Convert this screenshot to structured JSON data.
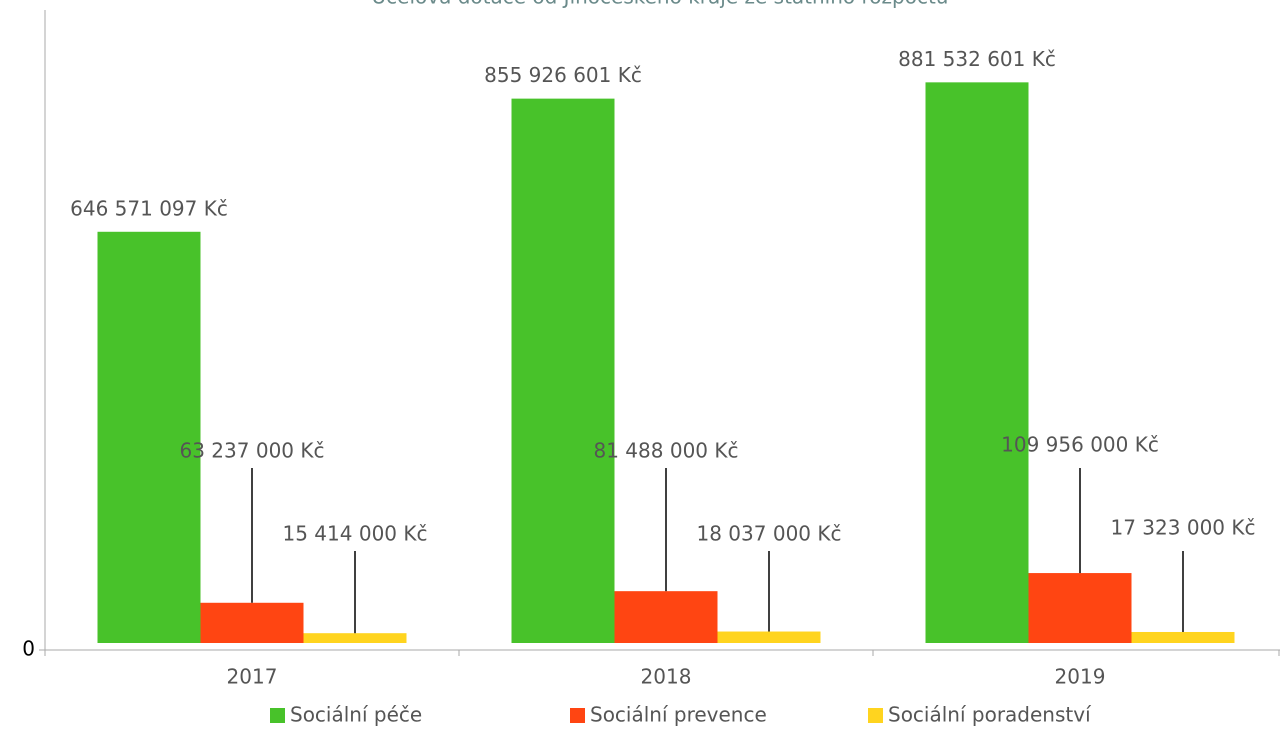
{
  "chart_data": {
    "type": "bar",
    "title": "Účelová dotace od Jihočeského kraje ze státního rozpočtu",
    "categories": [
      "2017",
      "2018",
      "2019"
    ],
    "series": [
      {
        "name": "Sociální péče",
        "color": "#48c22a",
        "values": [
          646571097,
          855926601,
          881532601
        ],
        "value_labels": [
          "646 571 097 Kč",
          "855 926 601 Kč",
          "881 532 601 Kč"
        ]
      },
      {
        "name": "Sociální prevence",
        "color": "#ff4512",
        "values": [
          63237000,
          81488000,
          109956000
        ],
        "value_labels": [
          "63 237 000 Kč",
          "81 488 000 Kč",
          "109 956 000 Kč"
        ]
      },
      {
        "name": "Sociální poradenství",
        "color": "#ffd41f",
        "values": [
          15414000,
          18037000,
          17323000
        ],
        "value_labels": [
          "15 414 000 Kč",
          "18 037 000 Kč",
          "17 323 000 Kč"
        ]
      }
    ],
    "ylim": [
      0,
      1000000000
    ],
    "yticks": [
      0
    ],
    "legend": "bottom"
  }
}
